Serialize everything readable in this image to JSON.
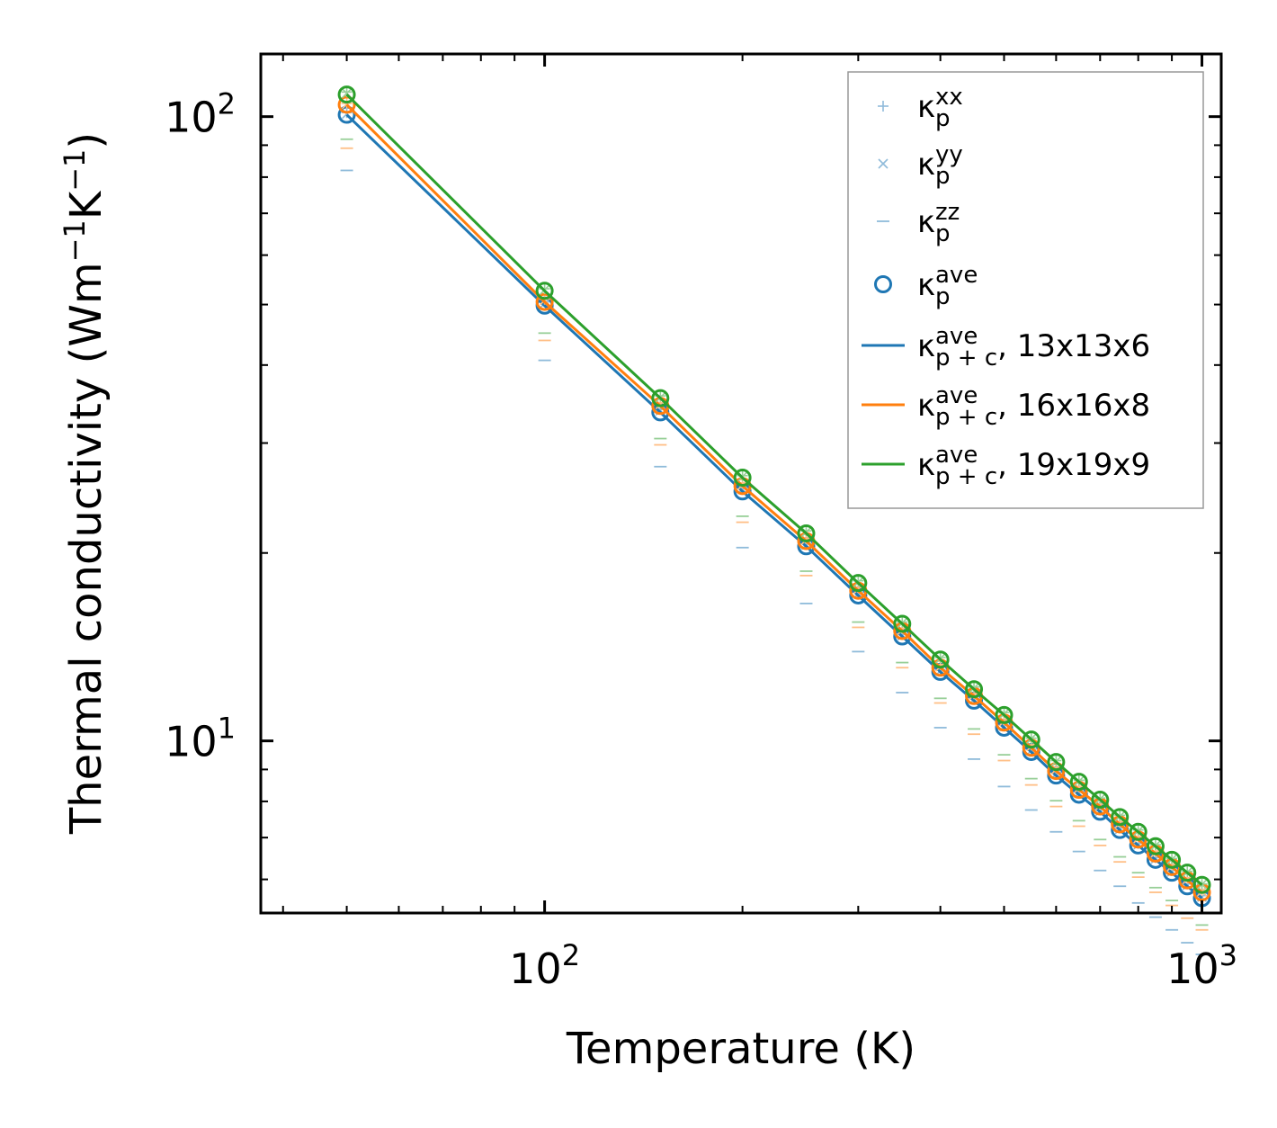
{
  "chart_data": {
    "type": "line",
    "title": "",
    "xlabel": "Temperature (K)",
    "ylabel_parts": {
      "main": "Thermal conductivity (Wm",
      "exp1": "−1",
      "mid": "K",
      "exp2": "−1",
      "close": ")"
    },
    "xscale": "log",
    "yscale": "log",
    "xlim": [
      37,
      1070
    ],
    "ylim": [
      5.3,
      126
    ],
    "x_ticks": [
      {
        "value": 100,
        "base": "10",
        "exp": "2"
      },
      {
        "value": 1000,
        "base": "10",
        "exp": "3"
      }
    ],
    "y_ticks": [
      {
        "value": 10,
        "base": "10",
        "exp": "1"
      },
      {
        "value": 100,
        "base": "10",
        "exp": "2"
      }
    ],
    "legend_position": "upper right",
    "colors": {
      "blue": "#1f77b4",
      "orange": "#ff7f0e",
      "green": "#2ca02c",
      "faded_blue": "#8fbbda",
      "faded_orange": "#ffbf86"
    },
    "x": [
      50,
      100,
      150,
      200,
      250,
      300,
      350,
      400,
      450,
      500,
      550,
      600,
      650,
      700,
      750,
      800,
      850,
      900,
      950,
      1000
    ],
    "series": [
      {
        "name": "13x13x6",
        "color": "#1f77b4",
        "faded": "#8fbbda",
        "ave": [
          100.7,
          49.8,
          33.6,
          25.1,
          20.5,
          17.1,
          14.7,
          12.9,
          11.6,
          10.5,
          9.6,
          8.8,
          8.2,
          7.7,
          7.2,
          6.8,
          6.45,
          6.15,
          5.85,
          5.6
        ],
        "xx": [
          101.5,
          50.5,
          34.0,
          25.5,
          20.7,
          17.3,
          14.8,
          13.0,
          11.7,
          10.6,
          9.7,
          8.9,
          8.3,
          7.75,
          7.25,
          6.85,
          6.5,
          6.2,
          5.9,
          5.65
        ],
        "yy": [
          101.0,
          50.2,
          33.8,
          25.3,
          20.6,
          17.2,
          14.75,
          12.95,
          11.65,
          10.55,
          9.65,
          8.85,
          8.25,
          7.72,
          7.22,
          6.82,
          6.47,
          6.17,
          5.87,
          5.62
        ],
        "zz": [
          82.0,
          40.7,
          27.5,
          20.4,
          16.6,
          13.9,
          11.95,
          10.5,
          9.35,
          8.45,
          7.75,
          7.15,
          6.65,
          6.2,
          5.85,
          5.5,
          5.22,
          4.98,
          4.75,
          4.55
        ],
        "line": [
          100.7,
          49.8,
          33.6,
          25.1,
          20.5,
          17.1,
          14.7,
          12.9,
          11.6,
          10.5,
          9.6,
          8.8,
          8.2,
          7.7,
          7.2,
          6.8,
          6.45,
          6.15,
          5.85,
          5.6
        ]
      },
      {
        "name": "16x16x8",
        "color": "#ff7f0e",
        "faded": "#ffbf86",
        "ave": [
          104.5,
          50.5,
          34.4,
          25.6,
          20.9,
          17.4,
          15.0,
          13.1,
          11.8,
          10.7,
          9.75,
          8.95,
          8.35,
          7.85,
          7.35,
          6.95,
          6.6,
          6.28,
          5.98,
          5.72
        ],
        "xx": [
          105.0,
          51.0,
          34.8,
          25.9,
          21.1,
          17.6,
          15.15,
          13.25,
          11.9,
          10.8,
          9.85,
          9.05,
          8.45,
          7.92,
          7.42,
          7.02,
          6.65,
          6.33,
          6.03,
          5.76
        ],
        "yy": [
          104.7,
          50.8,
          34.6,
          25.7,
          21.0,
          17.5,
          15.05,
          13.15,
          11.85,
          10.75,
          9.8,
          9.0,
          8.4,
          7.88,
          7.38,
          6.98,
          6.62,
          6.3,
          6.0,
          5.74
        ],
        "zz": [
          89.0,
          43.8,
          29.8,
          22.4,
          18.4,
          15.2,
          13.1,
          11.5,
          10.25,
          9.3,
          8.5,
          7.85,
          7.3,
          6.8,
          6.4,
          6.05,
          5.72,
          5.45,
          5.2,
          4.98
        ],
        "line": [
          104.5,
          50.5,
          34.4,
          25.6,
          20.9,
          17.4,
          15.0,
          13.1,
          11.8,
          10.7,
          9.75,
          8.95,
          8.35,
          7.85,
          7.35,
          6.95,
          6.6,
          6.28,
          5.98,
          5.72
        ]
      },
      {
        "name": "19x19x9",
        "color": "#2ca02c",
        "faded": "#98cf98",
        "ave": [
          108.5,
          52.6,
          35.4,
          26.4,
          21.5,
          17.9,
          15.4,
          13.5,
          12.1,
          11.0,
          10.05,
          9.25,
          8.6,
          8.05,
          7.55,
          7.15,
          6.78,
          6.45,
          6.15,
          5.88
        ],
        "xx": [
          109.5,
          53.0,
          35.7,
          26.6,
          21.7,
          18.05,
          15.5,
          13.6,
          12.2,
          11.1,
          10.1,
          9.3,
          8.65,
          8.1,
          7.6,
          7.2,
          6.82,
          6.48,
          6.18,
          5.9
        ],
        "yy": [
          109.0,
          52.8,
          35.5,
          26.5,
          21.6,
          17.95,
          15.45,
          13.55,
          12.15,
          11.05,
          10.08,
          9.27,
          8.62,
          8.07,
          7.57,
          7.17,
          6.8,
          6.46,
          6.16,
          5.89
        ],
        "zz": [
          92.0,
          45.0,
          30.5,
          22.9,
          18.7,
          15.5,
          13.35,
          11.7,
          10.45,
          9.5,
          8.7,
          8.02,
          7.45,
          6.95,
          6.52,
          6.15,
          5.82,
          5.55,
          5.3,
          5.07
        ],
        "line": [
          108.5,
          52.6,
          35.4,
          26.4,
          21.5,
          17.9,
          15.4,
          13.5,
          12.1,
          11.0,
          10.05,
          9.25,
          8.6,
          8.05,
          7.55,
          7.15,
          6.78,
          6.45,
          6.15,
          5.88
        ]
      }
    ],
    "legend": [
      {
        "marker": "plus",
        "kappa": "κ",
        "sub": "p",
        "sup": "xx",
        "suffix": ""
      },
      {
        "marker": "cross",
        "kappa": "κ",
        "sub": "p",
        "sup": "yy",
        "suffix": ""
      },
      {
        "marker": "dash",
        "kappa": "κ",
        "sub": "p",
        "sup": "zz",
        "suffix": ""
      },
      {
        "marker": "circle",
        "kappa": "κ",
        "sub": "p",
        "sup": "ave",
        "suffix": ""
      },
      {
        "marker": "line-blue",
        "kappa": "κ",
        "sub": "p + c",
        "sup": "ave",
        "suffix": ", 13x13x6"
      },
      {
        "marker": "line-orange",
        "kappa": "κ",
        "sub": "p + c",
        "sup": "ave",
        "suffix": ", 16x16x8"
      },
      {
        "marker": "line-green",
        "kappa": "κ",
        "sub": "p + c",
        "sup": "ave",
        "suffix": ", 19x19x9"
      }
    ]
  }
}
